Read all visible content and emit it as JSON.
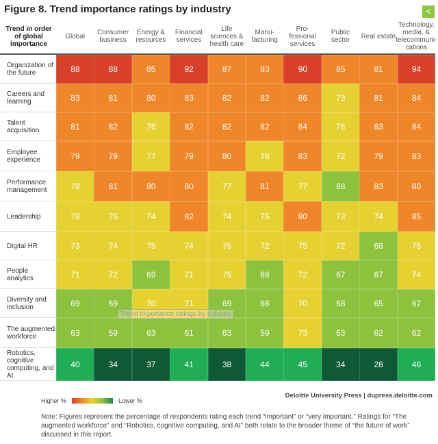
{
  "chart_data": {
    "type": "heatmap",
    "title": "Figure 8. Trend importance ratings by industry",
    "corner_label": "Trend in order of global importance",
    "columns": [
      "Global",
      "Consumer business",
      "Energy & resources",
      "Financial services",
      "Life sciences & health care",
      "Manu-facturing",
      "Pro-fessional services",
      "Public sector",
      "Real estate",
      "Technology, media, & telecommuni-cations"
    ],
    "rows": [
      "Organization of the future",
      "Careers and learning",
      "Talent acquisition",
      "Employee experience",
      "Performance management",
      "Leadership",
      "Digital HR",
      "People analytics",
      "Diversity and inclusion",
      "The augmented workforce",
      "Robotics, cognitive computing, and AI"
    ],
    "values": [
      [
        88,
        88,
        85,
        92,
        87,
        83,
        90,
        85,
        81,
        94
      ],
      [
        83,
        81,
        80,
        83,
        82,
        82,
        86,
        73,
        81,
        84
      ],
      [
        81,
        82,
        76,
        82,
        82,
        82,
        84,
        76,
        83,
        84
      ],
      [
        79,
        79,
        77,
        79,
        80,
        76,
        83,
        72,
        79,
        83
      ],
      [
        78,
        81,
        80,
        80,
        77,
        81,
        77,
        68,
        83,
        80
      ],
      [
        78,
        75,
        74,
        82,
        74,
        75,
        80,
        73,
        74,
        85
      ],
      [
        73,
        74,
        75,
        74,
        75,
        72,
        75,
        72,
        68,
        76
      ],
      [
        71,
        72,
        69,
        71,
        75,
        68,
        72,
        67,
        67,
        74
      ],
      [
        69,
        69,
        70,
        71,
        69,
        68,
        70,
        68,
        65,
        67
      ],
      [
        63,
        59,
        63,
        61,
        63,
        59,
        73,
        63,
        62,
        62
      ],
      [
        40,
        34,
        37,
        41,
        38,
        44,
        45,
        34,
        28,
        46
      ]
    ],
    "legend": {
      "high": "Higher %",
      "low": "Lower %"
    },
    "colors": {
      "red": "#d9402a",
      "orange": "#f0862a",
      "yellow": "#e6d133",
      "lightgreen": "#8cc23e",
      "green": "#1fae55",
      "darkgreen": "#0f5a36"
    }
  },
  "source": "Deloitte University Press  |  dupress.deloitte.com",
  "note": "Note: Figures represent the percentage of respondents rating each trend “important” or “very important.” Ratings for “The augmented workforce” and “Robotics, cognitive computing, and AI” both relate to the broader theme of “the future of work” discussed in this report.",
  "tooltip": "Trend importance ratings by industry"
}
